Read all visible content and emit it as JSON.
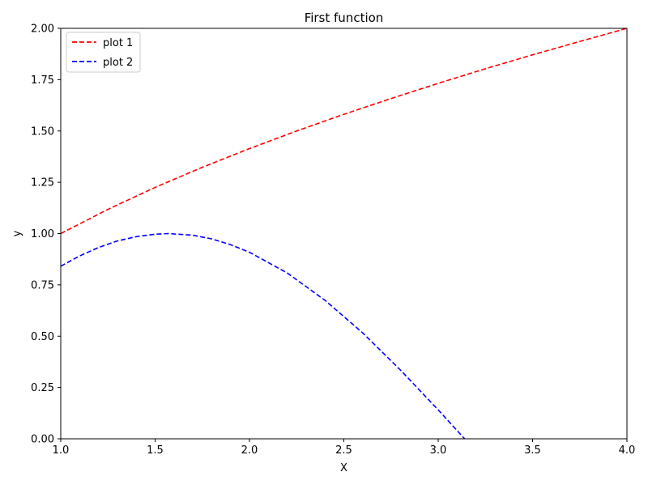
{
  "chart_data": {
    "type": "line",
    "title": "First function",
    "xlabel": "X",
    "ylabel": "y",
    "xlim": [
      1.0,
      4.0
    ],
    "ylim": [
      0.0,
      2.0
    ],
    "xticks": [
      1.0,
      1.5,
      2.0,
      2.5,
      3.0,
      3.5,
      4.0
    ],
    "xtick_labels": [
      "1.0",
      "1.5",
      "2.0",
      "2.5",
      "3.0",
      "3.5",
      "4.0"
    ],
    "yticks": [
      0.0,
      0.25,
      0.5,
      0.75,
      1.0,
      1.25,
      1.5,
      1.75,
      2.0
    ],
    "ytick_labels": [
      "0.00",
      "0.25",
      "0.50",
      "0.75",
      "1.00",
      "1.25",
      "1.50",
      "1.75",
      "2.00"
    ],
    "grid": false,
    "legend_position": "top-left",
    "series": [
      {
        "name": "plot 1",
        "color": "#ff0000",
        "line_style": "dashed",
        "x": [
          1.0,
          1.25,
          1.5,
          1.75,
          2.0,
          2.25,
          2.5,
          2.75,
          3.0,
          3.25,
          3.5,
          3.75,
          4.0
        ],
        "y": [
          1.0,
          1.118,
          1.225,
          1.323,
          1.414,
          1.5,
          1.581,
          1.658,
          1.732,
          1.803,
          1.871,
          1.936,
          2.0
        ]
      },
      {
        "name": "plot 2",
        "color": "#0000ff",
        "line_style": "dashed",
        "x": [
          1.0,
          1.1,
          1.2,
          1.3,
          1.4,
          1.5,
          1.57,
          1.7,
          1.8,
          1.9,
          2.0,
          2.2,
          2.4,
          2.6,
          2.8,
          3.0,
          3.14
        ],
        "y": [
          0.841,
          0.891,
          0.932,
          0.964,
          0.985,
          0.997,
          1.0,
          0.992,
          0.974,
          0.946,
          0.909,
          0.808,
          0.675,
          0.516,
          0.335,
          0.141,
          0.0
        ]
      }
    ]
  }
}
